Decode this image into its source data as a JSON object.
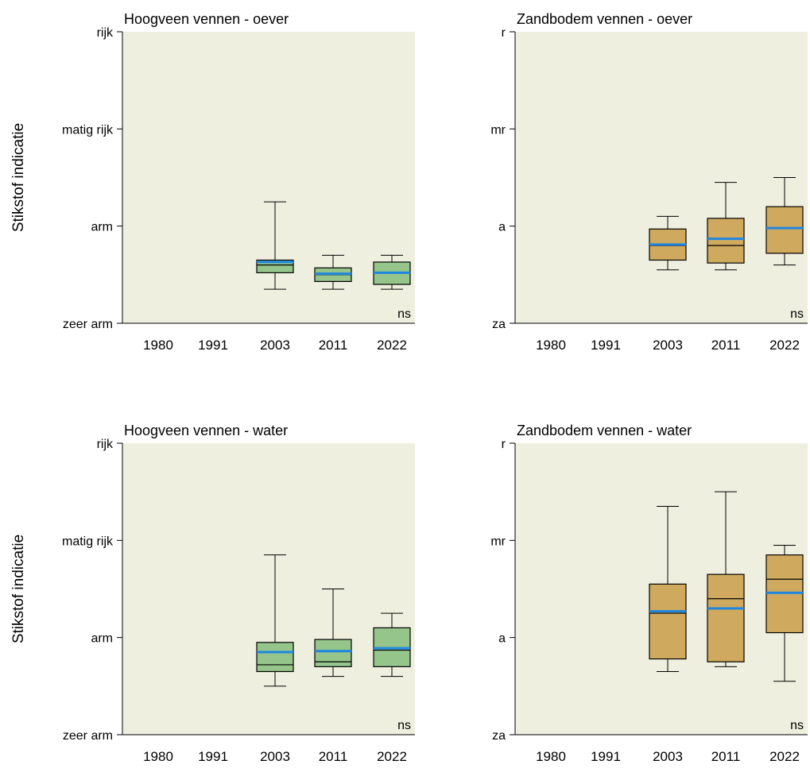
{
  "colors": {
    "panel_background": "#efefe0",
    "box_fill_hoogveen": "#95c58a",
    "box_fill_zandbodem": "#cfa95e",
    "mean_line": "#1f86e0",
    "stroke": "#000000"
  },
  "chart_data": [
    {
      "type": "boxplot",
      "title": "Hoogveen vennen - oever",
      "ylabel": "Stikstof indicatie",
      "xlabel": "",
      "ylim": [
        0,
        3
      ],
      "yticks": [
        0,
        1,
        2,
        3
      ],
      "ytick_labels": [
        "zeer arm",
        "arm",
        "matig rijk",
        "rijk"
      ],
      "categories": [
        "1980",
        "1991",
        "2003",
        "2011",
        "2022"
      ],
      "fill_key": "box_fill_hoogveen",
      "boxes": [
        {
          "category": "2003",
          "whisker_low": 0.35,
          "q1": 0.52,
          "median": 0.6,
          "q3": 0.65,
          "whisker_high": 1.25,
          "mean": 0.63
        },
        {
          "category": "2011",
          "whisker_low": 0.35,
          "q1": 0.43,
          "median": 0.5,
          "q3": 0.57,
          "whisker_high": 0.7,
          "mean": 0.51
        },
        {
          "category": "2022",
          "whisker_low": 0.35,
          "q1": 0.4,
          "median": 0.52,
          "q3": 0.63,
          "whisker_high": 0.7,
          "mean": 0.52
        }
      ],
      "annotation": "ns"
    },
    {
      "type": "boxplot",
      "title": "Zandbodem vennen - oever",
      "ylabel": "",
      "xlabel": "",
      "ylim": [
        0,
        3
      ],
      "yticks": [
        0,
        1,
        2,
        3
      ],
      "ytick_labels": [
        "za",
        "a",
        "mr",
        "r"
      ],
      "categories": [
        "1980",
        "1991",
        "2003",
        "2011",
        "2022"
      ],
      "fill_key": "box_fill_zandbodem",
      "boxes": [
        {
          "category": "2003",
          "whisker_low": 0.55,
          "q1": 0.65,
          "median": 0.8,
          "q3": 0.97,
          "whisker_high": 1.1,
          "mean": 0.81
        },
        {
          "category": "2011",
          "whisker_low": 0.55,
          "q1": 0.62,
          "median": 0.8,
          "q3": 1.08,
          "whisker_high": 1.45,
          "mean": 0.87
        },
        {
          "category": "2022",
          "whisker_low": 0.6,
          "q1": 0.72,
          "median": 0.98,
          "q3": 1.2,
          "whisker_high": 1.5,
          "mean": 0.98
        }
      ],
      "annotation": "ns"
    },
    {
      "type": "boxplot",
      "title": "Hoogveen vennen - water",
      "ylabel": "Stikstof indicatie",
      "xlabel": "",
      "ylim": [
        0,
        3
      ],
      "yticks": [
        0,
        1,
        2,
        3
      ],
      "ytick_labels": [
        "zeer arm",
        "arm",
        "matig rijk",
        "rijk"
      ],
      "categories": [
        "1980",
        "1991",
        "2003",
        "2011",
        "2022"
      ],
      "fill_key": "box_fill_hoogveen",
      "boxes": [
        {
          "category": "2003",
          "whisker_low": 0.5,
          "q1": 0.65,
          "median": 0.72,
          "q3": 0.95,
          "whisker_high": 1.85,
          "mean": 0.85
        },
        {
          "category": "2011",
          "whisker_low": 0.6,
          "q1": 0.7,
          "median": 0.75,
          "q3": 0.98,
          "whisker_high": 1.5,
          "mean": 0.86
        },
        {
          "category": "2022",
          "whisker_low": 0.6,
          "q1": 0.7,
          "median": 0.87,
          "q3": 1.1,
          "whisker_high": 1.25,
          "mean": 0.89
        }
      ],
      "annotation": "ns"
    },
    {
      "type": "boxplot",
      "title": "Zandbodem vennen - water",
      "ylabel": "",
      "xlabel": "",
      "ylim": [
        0,
        3
      ],
      "yticks": [
        0,
        1,
        2,
        3
      ],
      "ytick_labels": [
        "za",
        "a",
        "mr",
        "r"
      ],
      "categories": [
        "1980",
        "1991",
        "2003",
        "2011",
        "2022"
      ],
      "fill_key": "box_fill_zandbodem",
      "boxes": [
        {
          "category": "2003",
          "whisker_low": 0.65,
          "q1": 0.78,
          "median": 1.25,
          "q3": 1.55,
          "whisker_high": 2.35,
          "mean": 1.27
        },
        {
          "category": "2011",
          "whisker_low": 0.7,
          "q1": 0.75,
          "median": 1.4,
          "q3": 1.65,
          "whisker_high": 2.5,
          "mean": 1.3
        },
        {
          "category": "2022",
          "whisker_low": 0.55,
          "q1": 1.05,
          "median": 1.6,
          "q3": 1.85,
          "whisker_high": 1.95,
          "mean": 1.46
        }
      ],
      "annotation": "ns"
    }
  ]
}
